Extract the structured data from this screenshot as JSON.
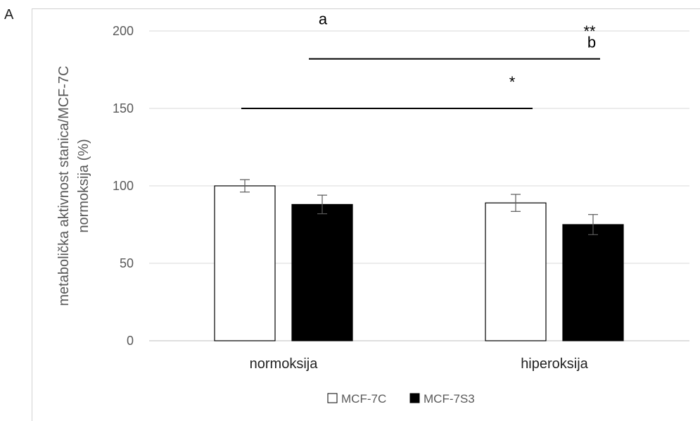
{
  "panel_label": "A",
  "chart_data": {
    "type": "bar",
    "categories": [
      "normoksija",
      "hiperoksija"
    ],
    "series": [
      {
        "name": "MCF-7C",
        "values": [
          100,
          89
        ],
        "errors": [
          4,
          5.5
        ],
        "color": "#ffffff",
        "stroke": "#000000"
      },
      {
        "name": "MCF-7S3",
        "values": [
          88,
          75
        ],
        "errors": [
          6,
          6.5
        ],
        "color": "#000000",
        "stroke": "#000000"
      }
    ],
    "ylim": [
      0,
      200
    ],
    "yticks": [
      0,
      50,
      100,
      150,
      200
    ],
    "ylabel_line1": "metabolička aktivnost stanica/MCF-7C",
    "ylabel_line2": "normoksija (%)",
    "xlabel": "",
    "title": "",
    "grid": true,
    "legend_position": "bottom",
    "letters": [
      {
        "text": "a",
        "category": 0,
        "y": 208
      },
      {
        "text": "b",
        "category": 1,
        "y": 193
      }
    ],
    "significance": [
      {
        "label": "*",
        "from": "normoksija",
        "to": "hiperoksija",
        "y": 150
      },
      {
        "label": "**",
        "from": "normoksija",
        "to": "hiperoksija",
        "y": 182
      }
    ]
  }
}
